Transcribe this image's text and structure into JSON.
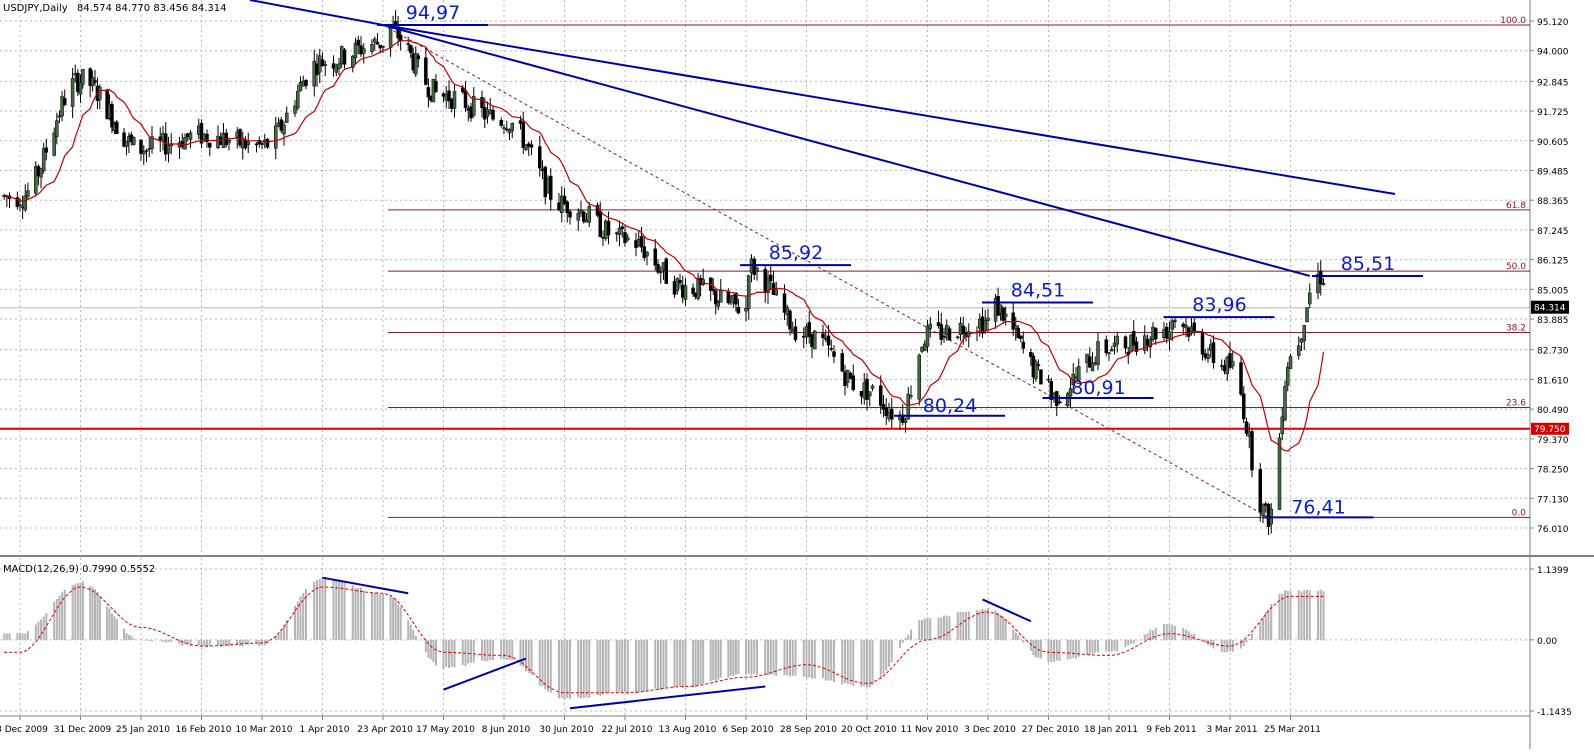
{
  "header": {
    "symbol": "USDJPY,Daily",
    "ohlc": "84.574 84.770 83.456 84.314"
  },
  "macd_header": {
    "label": "MACD(12,26,9) 0.7990 0.5552"
  },
  "colors": {
    "bull_body": "#3f6b3f",
    "bear_body": "#000000",
    "ma": "#c00000",
    "trendline": "#0000a8",
    "annotation": "#0a1ec8",
    "fib": "#8b1a2a",
    "support": "#d40000",
    "grid": "#b8b8b8",
    "hist": "#b4b4b4",
    "signal": "#e00000"
  },
  "chart_data": [
    {
      "type": "candlestick",
      "title": "USDJPY,Daily",
      "ylim": [
        76.01,
        95.12
      ],
      "grid": true,
      "y_ticks": [
        "95.120",
        "94.000",
        "92.845",
        "91.725",
        "90.605",
        "89.485",
        "88.365",
        "87.245",
        "86.125",
        "85.005",
        "83.885",
        "82.730",
        "81.610",
        "80.490",
        "79.370",
        "78.250",
        "77.130",
        "76.010"
      ],
      "x_ticks": [
        "8 Dec 2009",
        "31 Dec 2009",
        "25 Jan 2010",
        "16 Feb 2010",
        "10 Mar 2010",
        "1 Apr 2010",
        "23 Apr 2010",
        "17 May 2010",
        "8 Jun 2010",
        "30 Jun 2010",
        "22 Jul 2010",
        "13 Aug 2010",
        "6 Sep 2010",
        "28 Sep 2010",
        "20 Oct 2010",
        "11 Nov 2010",
        "3 Dec 2010",
        "27 Dec 2010",
        "18 Jan 2011",
        "9 Feb 2011",
        "3 Mar 2011",
        "25 Mar 2011"
      ],
      "last_price_label": "84.314",
      "last_price": 84.314,
      "support_label": "79.750",
      "support": 79.75,
      "fibonacci": [
        {
          "level": "100.0",
          "price": 94.97
        },
        {
          "level": "61.8",
          "price": 88.0
        },
        {
          "level": "50.0",
          "price": 85.69
        },
        {
          "level": "38.2",
          "price": 83.38
        },
        {
          "level": "23.6",
          "price": 80.55
        },
        {
          "level": "0.0",
          "price": 76.41
        }
      ],
      "annotations": [
        {
          "text": "94,97",
          "price": 94.97,
          "date": "23 Apr 2010"
        },
        {
          "text": "85,92",
          "price": 85.92,
          "date": "6 Sep 2010"
        },
        {
          "text": "84,51",
          "price": 84.51,
          "date": "3 Dec 2010"
        },
        {
          "text": "83,96",
          "price": 83.96,
          "date": "9 Feb 2011"
        },
        {
          "text": "85,51",
          "price": 85.51,
          "date": "4 Apr 2011"
        },
        {
          "text": "80,24",
          "price": 80.24,
          "date": "1 Nov 2010"
        },
        {
          "text": "80,91",
          "price": 80.91,
          "date": "27 Dec 2010"
        },
        {
          "text": "76,41",
          "price": 76.41,
          "date": "17 Mar 2011"
        }
      ],
      "trend_lines": [
        {
          "from": [
            "23 Apr 2010",
            94.97
          ],
          "to": [
            "1 Apr 2011",
            85.51
          ]
        },
        {
          "from": [
            "23 Apr 2010",
            94.97
          ],
          "to": [
            "2 May 2011",
            88.6
          ]
        }
      ],
      "series": [
        {
          "name": "price",
          "values": [
            {
              "x": "8 Dec 2009",
              "y": 88.5
            },
            {
              "x": "31 Dec 2009",
              "y": 92.9
            },
            {
              "x": "25 Jan 2010",
              "y": 90.3
            },
            {
              "x": "16 Feb 2010",
              "y": 90.8
            },
            {
              "x": "10 Mar 2010",
              "y": 90.4
            },
            {
              "x": "1 Apr 2010",
              "y": 93.6
            },
            {
              "x": "23 Apr 2010",
              "y": 94.3
            },
            {
              "x": "17 May 2010",
              "y": 92.3
            },
            {
              "x": "8 Jun 2010",
              "y": 91.4
            },
            {
              "x": "30 Jun 2010",
              "y": 88.2
            },
            {
              "x": "22 Jul 2010",
              "y": 86.9
            },
            {
              "x": "13 Aug 2010",
              "y": 85.1
            },
            {
              "x": "6 Sep 2010",
              "y": 84.3
            },
            {
              "x": "28 Sep 2010",
              "y": 83.3
            },
            {
              "x": "20 Oct 2010",
              "y": 81.2
            },
            {
              "x": "11 Nov 2010",
              "y": 83.3
            },
            {
              "x": "3 Dec 2010",
              "y": 83.8
            },
            {
              "x": "27 Dec 2010",
              "y": 81.6
            },
            {
              "x": "18 Jan 2011",
              "y": 82.8
            },
            {
              "x": "9 Feb 2011",
              "y": 83.5
            },
            {
              "x": "3 Mar 2011",
              "y": 82.1
            },
            {
              "x": "25 Mar 2011",
              "y": 82.5
            }
          ]
        }
      ]
    },
    {
      "type": "bar",
      "title": "MACD(12,26,9)",
      "ylim": [
        -1.1435,
        1.1399
      ],
      "y_ticks": [
        "1.1399",
        "0.00",
        "-1.1435"
      ],
      "series": [
        {
          "name": "macd",
          "values": [
            {
              "x": "8 Dec 2009",
              "y": 0.1
            },
            {
              "x": "31 Dec 2009",
              "y": 0.93
            },
            {
              "x": "25 Jan 2010",
              "y": 0.0
            },
            {
              "x": "16 Feb 2010",
              "y": -0.1
            },
            {
              "x": "10 Mar 2010",
              "y": -0.08
            },
            {
              "x": "1 Apr 2010",
              "y": 1.0
            },
            {
              "x": "23 Apr 2010",
              "y": 0.75
            },
            {
              "x": "17 May 2010",
              "y": -0.45
            },
            {
              "x": "8 Jun 2010",
              "y": -0.3
            },
            {
              "x": "30 Jun 2010",
              "y": -0.95
            },
            {
              "x": "22 Jul 2010",
              "y": -0.85
            },
            {
              "x": "13 Aug 2010",
              "y": -0.75
            },
            {
              "x": "6 Sep 2010",
              "y": -0.55
            },
            {
              "x": "28 Sep 2010",
              "y": -0.6
            },
            {
              "x": "20 Oct 2010",
              "y": -0.75
            },
            {
              "x": "11 Nov 2010",
              "y": 0.35
            },
            {
              "x": "3 Dec 2010",
              "y": 0.5
            },
            {
              "x": "27 Dec 2010",
              "y": -0.35
            },
            {
              "x": "18 Jan 2011",
              "y": -0.2
            },
            {
              "x": "9 Feb 2011",
              "y": 0.25
            },
            {
              "x": "3 Mar 2011",
              "y": -0.2
            },
            {
              "x": "25 Mar 2011",
              "y": 0.8
            }
          ]
        },
        {
          "name": "signal",
          "values": [
            {
              "x": "8 Dec 2009",
              "y": -0.2
            },
            {
              "x": "31 Dec 2009",
              "y": 0.85
            },
            {
              "x": "25 Jan 2010",
              "y": 0.2
            },
            {
              "x": "16 Feb 2010",
              "y": -0.1
            },
            {
              "x": "10 Mar 2010",
              "y": -0.05
            },
            {
              "x": "1 Apr 2010",
              "y": 0.85
            },
            {
              "x": "23 Apr 2010",
              "y": 0.75
            },
            {
              "x": "17 May 2010",
              "y": -0.2
            },
            {
              "x": "8 Jun 2010",
              "y": -0.25
            },
            {
              "x": "30 Jun 2010",
              "y": -0.85
            },
            {
              "x": "22 Jul 2010",
              "y": -0.85
            },
            {
              "x": "13 Aug 2010",
              "y": -0.75
            },
            {
              "x": "6 Sep 2010",
              "y": -0.6
            },
            {
              "x": "28 Sep 2010",
              "y": -0.4
            },
            {
              "x": "20 Oct 2010",
              "y": -0.7
            },
            {
              "x": "11 Nov 2010",
              "y": 0.0
            },
            {
              "x": "3 Dec 2010",
              "y": 0.45
            },
            {
              "x": "27 Dec 2010",
              "y": -0.2
            },
            {
              "x": "18 Jan 2011",
              "y": -0.25
            },
            {
              "x": "9 Feb 2011",
              "y": 0.1
            },
            {
              "x": "3 Mar 2011",
              "y": -0.1
            },
            {
              "x": "25 Mar 2011",
              "y": 0.7
            }
          ]
        }
      ],
      "divergence_lines": [
        {
          "from": [
            "1 Apr 2010",
            1.0
          ],
          "to": [
            "3 May 2010",
            0.75
          ]
        },
        {
          "from": [
            "17 May 2010",
            -0.8
          ],
          "to": [
            "16 Jun 2010",
            -0.3
          ]
        },
        {
          "from": [
            "2 Jul 2010",
            -1.1
          ],
          "to": [
            "13 Sep 2010",
            -0.75
          ]
        },
        {
          "from": [
            "1 Dec 2010",
            0.65
          ],
          "to": [
            "20 Dec 2010",
            0.3
          ]
        }
      ]
    }
  ]
}
